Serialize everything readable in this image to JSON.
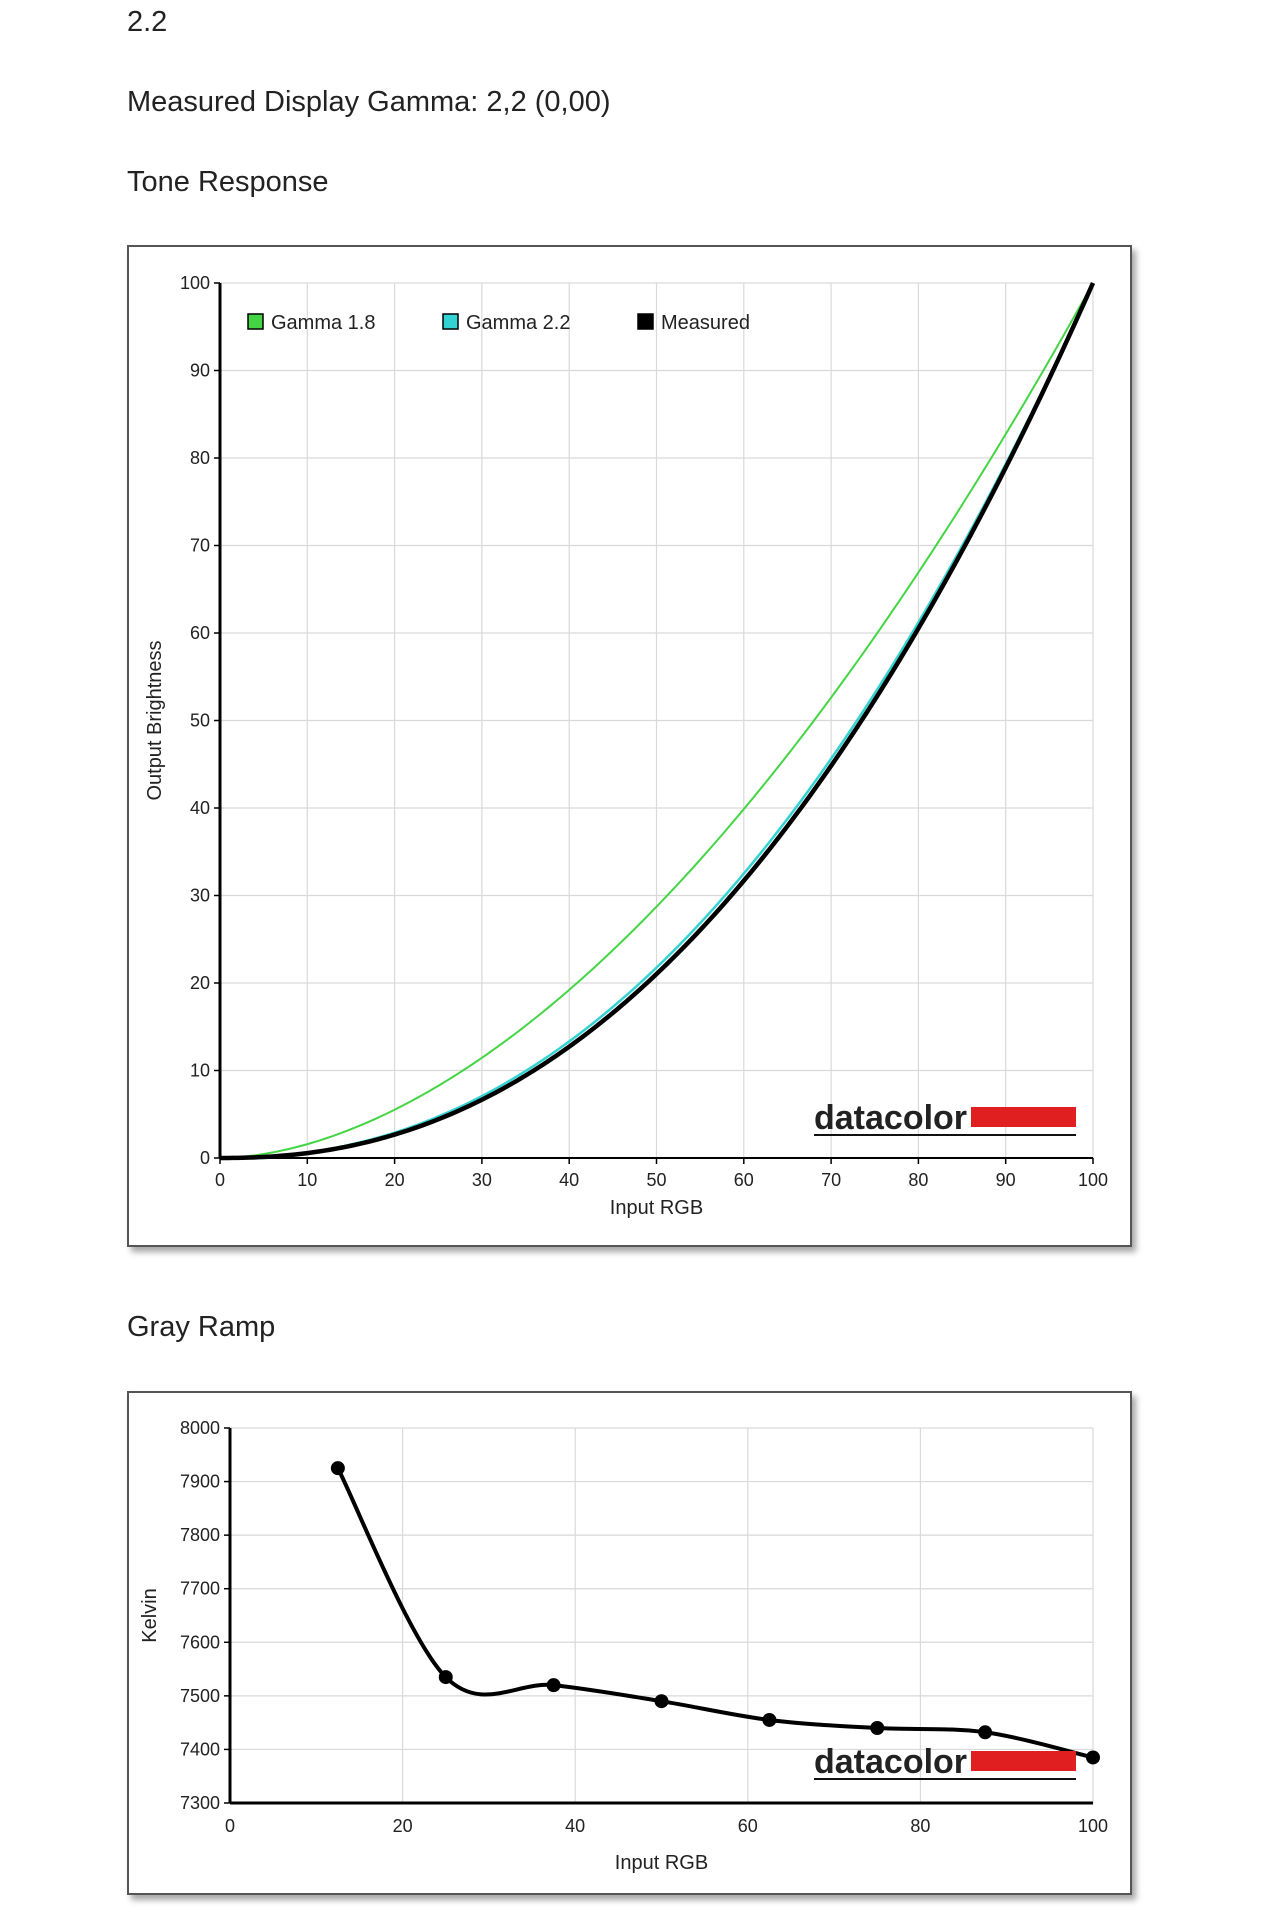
{
  "page": {
    "gamma_value": "2.2",
    "measured_gamma_text": "Measured Display Gamma: 2,2 (0,00)",
    "tone_heading": "Tone Response",
    "gray_heading": "Gray Ramp",
    "logo_text": "datacolor"
  },
  "colors": {
    "gamma18": "#44d544",
    "gamma22": "#33d3d3",
    "measured": "#000000",
    "grid": "#d9d9d9",
    "logo_red": "#e02020"
  },
  "chart_data": [
    {
      "type": "line",
      "title": "",
      "xlabel": "Input RGB",
      "ylabel": "Output Brightness",
      "xlim": [
        0,
        100
      ],
      "ylim": [
        0,
        100
      ],
      "xticks": [
        0,
        10,
        20,
        30,
        40,
        50,
        60,
        70,
        80,
        90,
        100
      ],
      "yticks": [
        0,
        10,
        20,
        30,
        40,
        50,
        60,
        70,
        80,
        90,
        100
      ],
      "grid": true,
      "legend_position": "top-left",
      "series": [
        {
          "name": "Gamma 1.8",
          "gamma": 1.8,
          "color": "#44d544"
        },
        {
          "name": "Gamma 2.2",
          "gamma": 2.2,
          "color": "#33d3d3"
        },
        {
          "name": "Measured",
          "gamma": 2.25,
          "color": "#000000"
        }
      ]
    },
    {
      "type": "line",
      "title": "",
      "xlabel": "Input RGB",
      "ylabel": "Kelvin",
      "xlim": [
        0,
        100
      ],
      "ylim": [
        7300,
        8000
      ],
      "xticks": [
        0,
        20,
        40,
        60,
        80,
        100
      ],
      "yticks": [
        7300,
        7400,
        7500,
        7600,
        7700,
        7800,
        7900,
        8000
      ],
      "grid": true,
      "series": [
        {
          "x": [
            12.5,
            25,
            37.5,
            50,
            62.5,
            75,
            87.5,
            100
          ],
          "y": [
            7925,
            7535,
            7520,
            7490,
            7455,
            7440,
            7432,
            7385
          ]
        }
      ]
    }
  ]
}
